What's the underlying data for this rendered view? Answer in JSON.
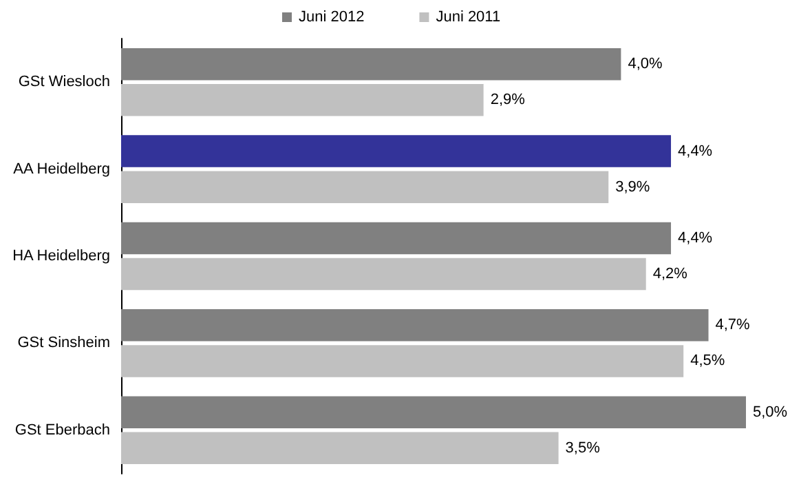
{
  "chart_data": {
    "type": "bar",
    "orientation": "horizontal",
    "categories": [
      "GSt Wiesloch",
      "AA Heidelberg",
      "HA Heidelberg",
      "GSt Sinsheim",
      "GSt Eberbach"
    ],
    "series": [
      {
        "name": "Juni 2012",
        "color": "#808080",
        "colors": [
          "#808080",
          "#333399",
          "#808080",
          "#808080",
          "#808080"
        ],
        "values": [
          4.0,
          4.4,
          4.4,
          4.7,
          5.0
        ],
        "value_labels": [
          "4,0%",
          "4,4%",
          "4,4%",
          "4,7%",
          "5,0%"
        ]
      },
      {
        "name": "Juni 2011",
        "color": "#c0c0c0",
        "values": [
          2.9,
          3.9,
          4.2,
          4.5,
          3.5
        ],
        "value_labels": [
          "2,9%",
          "3,9%",
          "4,2%",
          "4,5%",
          "3,5%"
        ]
      }
    ],
    "grid": false,
    "legend": "top",
    "tick_labels": "y"
  }
}
